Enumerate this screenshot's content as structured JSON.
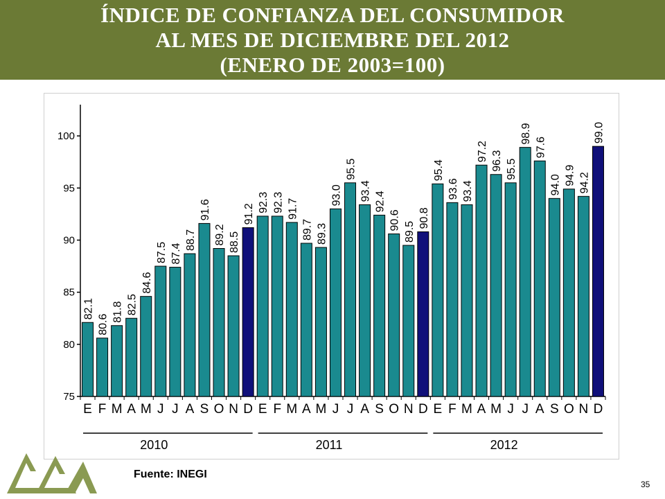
{
  "header": {
    "title_line1": "ÍNDICE DE CONFIANZA DEL CONSUMIDOR",
    "title_line2": "AL MES DE DICIEMBRE DEL 2012",
    "title_line3": "(ENERO DE 2003=100)"
  },
  "source": "Fuente: INEGI",
  "page_number": "35",
  "colors": {
    "header_bg": "#6b7a35",
    "bar_regular": "#1a8a8f",
    "bar_december": "#10107a",
    "logo": "#8a9a52"
  },
  "chart_data": {
    "type": "bar",
    "title": "",
    "xlabel": "",
    "ylabel": "",
    "ylim": [
      75,
      103
    ],
    "yticks": [
      75,
      80,
      85,
      90,
      95,
      100
    ],
    "grid": false,
    "legend": "none",
    "categories": [
      "E",
      "F",
      "M",
      "A",
      "M",
      "J",
      "J",
      "A",
      "S",
      "O",
      "N",
      "D",
      "E",
      "F",
      "M",
      "A",
      "M",
      "J",
      "J",
      "A",
      "S",
      "O",
      "N",
      "D",
      "E",
      "F",
      "M",
      "A",
      "M",
      "J",
      "J",
      "A",
      "S",
      "O",
      "N",
      "D"
    ],
    "values": [
      82.1,
      80.6,
      81.8,
      82.5,
      84.6,
      87.5,
      87.4,
      88.7,
      91.6,
      89.2,
      88.5,
      91.2,
      92.3,
      92.3,
      91.7,
      89.7,
      89.3,
      93.0,
      95.5,
      93.4,
      92.4,
      90.6,
      89.5,
      90.8,
      95.4,
      93.6,
      93.4,
      97.2,
      96.3,
      95.5,
      98.9,
      97.6,
      94.0,
      94.9,
      94.2,
      99.0
    ],
    "data_labels": [
      "82.1",
      "80.6",
      "81.8",
      "82.5",
      "84.6",
      "87.5",
      "87.4",
      "88.7",
      "91.6",
      "89.2",
      "88.5",
      "91.2",
      "92.3",
      "92.3",
      "91.7",
      "89.7",
      "89.3",
      "93.0",
      "95.5",
      "93.4",
      "92.4",
      "90.6",
      "89.5",
      "90.8",
      "95.4",
      "93.6",
      "93.4",
      "97.2",
      "96.3",
      "95.5",
      "98.9",
      "97.6",
      "94.0",
      "94.9",
      "94.2",
      "99.0"
    ],
    "years": [
      "2010",
      "2011",
      "2012"
    ]
  }
}
